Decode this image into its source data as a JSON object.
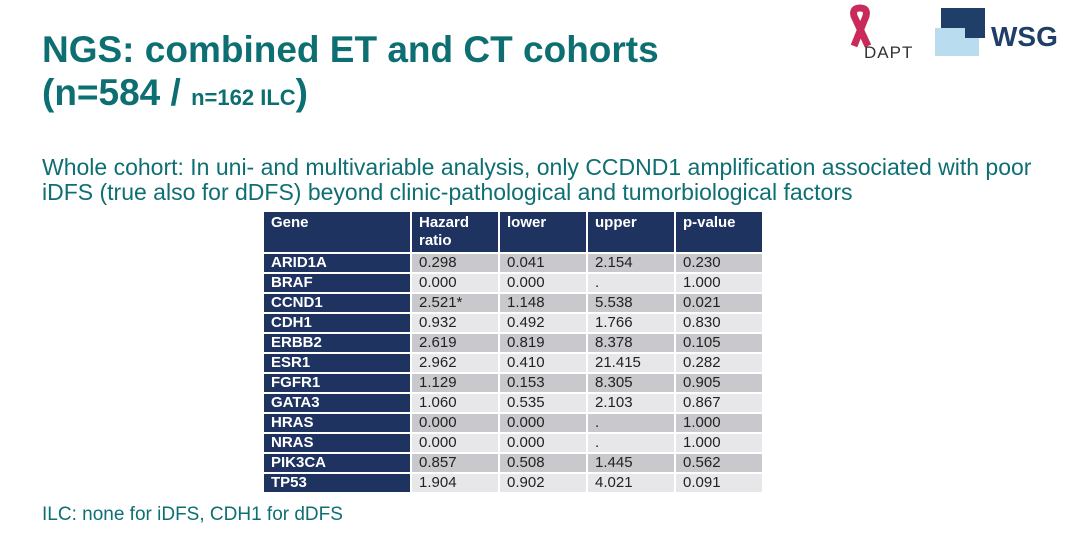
{
  "title": {
    "line1": "NGS: combined ET and CT cohorts",
    "line2_main": "(n=584 / ",
    "line2_small": "n=162 ILC",
    "line2_end": ")"
  },
  "subtitle": "Whole cohort: In uni- and multivariable analysis, only CCDND1 amplification associated with poor iDFS (true also for dDFS) beyond clinic-pathological and tumorbiological factors",
  "footnote": "ILC: none for iDFS, CDH1 for dDFS",
  "logos": {
    "adapt": "ADAPT",
    "wsg": "WSG"
  },
  "table": {
    "headers": [
      "Gene",
      "Hazard ratio",
      "lower",
      "upper",
      "p-value"
    ],
    "rows": [
      [
        "ARID1A",
        "0.298",
        "0.041",
        "2.154",
        "0.230"
      ],
      [
        "BRAF",
        "0.000",
        "0.000",
        ".",
        "1.000"
      ],
      [
        "CCND1",
        "2.521*",
        "1.148",
        "5.538",
        "0.021"
      ],
      [
        "CDH1",
        "0.932",
        "0.492",
        "1.766",
        "0.830"
      ],
      [
        "ERBB2",
        "2.619",
        "0.819",
        "8.378",
        "0.105"
      ],
      [
        "ESR1",
        "2.962",
        "0.410",
        "21.415",
        "0.282"
      ],
      [
        "FGFR1",
        "1.129",
        "0.153",
        "8.305",
        "0.905"
      ],
      [
        "GATA3",
        "1.060",
        "0.535",
        "2.103",
        "0.867"
      ],
      [
        "HRAS",
        "0.000",
        "0.000",
        ".",
        "1.000"
      ],
      [
        "NRAS",
        "0.000",
        "0.000",
        ".",
        "1.000"
      ],
      [
        "PIK3CA",
        "0.857",
        "0.508",
        "1.445",
        "0.562"
      ],
      [
        "TP53",
        "1.904",
        "0.902",
        "4.021",
        "0.091"
      ]
    ]
  },
  "colors": {
    "title": "#0e6f73",
    "header": "#1f3360",
    "row_dark": "#c9c9cd",
    "row_light": "#e7e7e9"
  }
}
